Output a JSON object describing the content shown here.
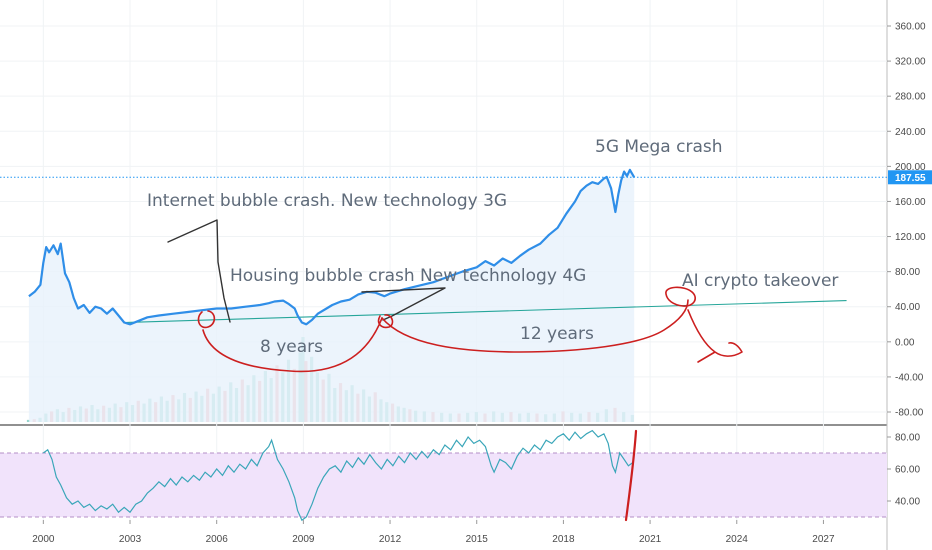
{
  "chart_data": [
    {
      "type": "line",
      "panel": "price",
      "y_ticks": [
        "360.00",
        "320.00",
        "280.00",
        "240.00",
        "200.00",
        "160.00",
        "120.00",
        "80.00",
        "40.00",
        "0.00",
        "-40.00",
        "-80.00"
      ],
      "ylim": [
        -80,
        380
      ],
      "xlim": [
        1998.5,
        2029.2
      ],
      "x_ticks": [
        "2000",
        "2003",
        "2006",
        "2009",
        "2012",
        "2015",
        "2018",
        "2021",
        "2024",
        "2027"
      ],
      "last_price": "187.55",
      "colors": {
        "price_line": "#2f8ee8",
        "area_fill": "#e7f1fb",
        "trend_line": "#26a69a",
        "last_price_label": "#2196f3",
        "annotation_ink": "#cc1f1f",
        "pen_ink": "#333333"
      },
      "series": [
        {
          "values": [
            [
              1999.5,
              52
            ],
            [
              1999.7,
              57
            ],
            [
              1999.9,
              65
            ],
            [
              2000.0,
              90
            ],
            [
              2000.1,
              108
            ],
            [
              2000.2,
              102
            ],
            [
              2000.35,
              110
            ],
            [
              2000.5,
              100
            ],
            [
              2000.6,
              112
            ],
            [
              2000.75,
              78
            ],
            [
              2000.9,
              68
            ],
            [
              2001.05,
              50
            ],
            [
              2001.2,
              38
            ],
            [
              2001.4,
              42
            ],
            [
              2001.6,
              33
            ],
            [
              2001.8,
              40
            ],
            [
              2002.0,
              38
            ],
            [
              2002.2,
              32
            ],
            [
              2002.4,
              38
            ],
            [
              2002.6,
              30
            ],
            [
              2002.8,
              22
            ],
            [
              2003.0,
              20
            ],
            [
              2003.3,
              24
            ],
            [
              2003.6,
              28
            ],
            [
              2004.0,
              30
            ],
            [
              2004.5,
              32
            ],
            [
              2005.0,
              34
            ],
            [
              2005.5,
              36
            ],
            [
              2006.0,
              38
            ],
            [
              2006.5,
              38
            ],
            [
              2007.0,
              40
            ],
            [
              2007.5,
              42
            ],
            [
              2007.8,
              44
            ],
            [
              2008.0,
              46
            ],
            [
              2008.3,
              47
            ],
            [
              2008.5,
              43
            ],
            [
              2008.7,
              38
            ],
            [
              2008.8,
              30
            ],
            [
              2008.95,
              22
            ],
            [
              2009.1,
              20
            ],
            [
              2009.3,
              25
            ],
            [
              2009.5,
              32
            ],
            [
              2009.8,
              38
            ],
            [
              2010.0,
              42
            ],
            [
              2010.3,
              46
            ],
            [
              2010.6,
              48
            ],
            [
              2010.9,
              54
            ],
            [
              2011.2,
              57
            ],
            [
              2011.5,
              56
            ],
            [
              2011.8,
              52
            ],
            [
              2012.0,
              55
            ],
            [
              2012.5,
              60
            ],
            [
              2013.0,
              64
            ],
            [
              2013.5,
              68
            ],
            [
              2014.0,
              74
            ],
            [
              2014.5,
              80
            ],
            [
              2015.0,
              85
            ],
            [
              2015.3,
              92
            ],
            [
              2015.6,
              87
            ],
            [
              2015.9,
              95
            ],
            [
              2016.2,
              90
            ],
            [
              2016.5,
              98
            ],
            [
              2016.8,
              105
            ],
            [
              2017.2,
              112
            ],
            [
              2017.5,
              122
            ],
            [
              2017.8,
              130
            ],
            [
              2018.1,
              146
            ],
            [
              2018.4,
              160
            ],
            [
              2018.6,
              172
            ],
            [
              2018.8,
              178
            ],
            [
              2019.0,
              182
            ],
            [
              2019.2,
              180
            ],
            [
              2019.4,
              186
            ],
            [
              2019.5,
              188
            ],
            [
              2019.65,
              175
            ],
            [
              2019.8,
              148
            ],
            [
              2019.9,
              168
            ],
            [
              2020.0,
              184
            ],
            [
              2020.1,
              194
            ],
            [
              2020.2,
              189
            ],
            [
              2020.3,
              196
            ],
            [
              2020.45,
              187.55
            ]
          ]
        }
      ],
      "volume": [
        [
          1999.5,
          3
        ],
        [
          1999.7,
          4
        ],
        [
          1999.9,
          6
        ],
        [
          2000.1,
          12
        ],
        [
          2000.3,
          15
        ],
        [
          2000.5,
          18
        ],
        [
          2000.7,
          14
        ],
        [
          2000.9,
          20
        ],
        [
          2001.1,
          17
        ],
        [
          2001.3,
          22
        ],
        [
          2001.5,
          19
        ],
        [
          2001.7,
          24
        ],
        [
          2001.9,
          18
        ],
        [
          2002.1,
          23
        ],
        [
          2002.3,
          20
        ],
        [
          2002.5,
          26
        ],
        [
          2002.7,
          21
        ],
        [
          2002.9,
          28
        ],
        [
          2003.1,
          24
        ],
        [
          2003.3,
          30
        ],
        [
          2003.5,
          26
        ],
        [
          2003.7,
          33
        ],
        [
          2003.9,
          28
        ],
        [
          2004.1,
          36
        ],
        [
          2004.3,
          30
        ],
        [
          2004.5,
          38
        ],
        [
          2004.7,
          32
        ],
        [
          2004.9,
          41
        ],
        [
          2005.1,
          34
        ],
        [
          2005.3,
          43
        ],
        [
          2005.5,
          37
        ],
        [
          2005.7,
          47
        ],
        [
          2005.9,
          40
        ],
        [
          2006.1,
          50
        ],
        [
          2006.3,
          44
        ],
        [
          2006.5,
          56
        ],
        [
          2006.7,
          48
        ],
        [
          2006.9,
          60
        ],
        [
          2007.1,
          52
        ],
        [
          2007.3,
          66
        ],
        [
          2007.5,
          58
        ],
        [
          2007.7,
          72
        ],
        [
          2007.9,
          62
        ],
        [
          2008.1,
          80
        ],
        [
          2008.3,
          70
        ],
        [
          2008.5,
          88
        ],
        [
          2008.7,
          75
        ],
        [
          2008.9,
          98
        ],
        [
          2009.0,
          120
        ],
        [
          2009.1,
          86
        ],
        [
          2009.3,
          92
        ],
        [
          2009.5,
          70
        ],
        [
          2009.7,
          60
        ],
        [
          2009.9,
          68
        ],
        [
          2010.1,
          48
        ],
        [
          2010.3,
          55
        ],
        [
          2010.5,
          45
        ],
        [
          2010.7,
          52
        ],
        [
          2010.9,
          40
        ],
        [
          2011.1,
          46
        ],
        [
          2011.3,
          36
        ],
        [
          2011.5,
          42
        ],
        [
          2011.7,
          32
        ],
        [
          2011.9,
          28
        ],
        [
          2012.1,
          26
        ],
        [
          2012.3,
          22
        ],
        [
          2012.5,
          20
        ],
        [
          2012.7,
          18
        ],
        [
          2012.9,
          16
        ],
        [
          2013.2,
          15
        ],
        [
          2013.5,
          14
        ],
        [
          2013.8,
          13
        ],
        [
          2014.1,
          12
        ],
        [
          2014.4,
          12
        ],
        [
          2014.7,
          13
        ],
        [
          2015.0,
          14
        ],
        [
          2015.3,
          12
        ],
        [
          2015.6,
          15
        ],
        [
          2015.9,
          13
        ],
        [
          2016.2,
          14
        ],
        [
          2016.5,
          12
        ],
        [
          2016.8,
          13
        ],
        [
          2017.1,
          12
        ],
        [
          2017.4,
          11
        ],
        [
          2017.7,
          12
        ],
        [
          2018.0,
          15
        ],
        [
          2018.3,
          13
        ],
        [
          2018.6,
          12
        ],
        [
          2018.9,
          14
        ],
        [
          2019.2,
          13
        ],
        [
          2019.5,
          18
        ],
        [
          2019.8,
          20
        ],
        [
          2020.1,
          14
        ],
        [
          2020.4,
          10
        ]
      ],
      "annotations": [
        {
          "text": "Internet bubble crash. New technology 3G"
        },
        {
          "text": "Housing bubble crash New technology 4G"
        },
        {
          "text": "5G Mega crash"
        },
        {
          "text": "AI crypto takeover"
        },
        {
          "text": "8 years"
        },
        {
          "text": "12 years"
        }
      ]
    },
    {
      "type": "line",
      "panel": "rsi",
      "y_ticks": [
        "80.00",
        "60.00",
        "40.00"
      ],
      "ylim": [
        25,
        86
      ],
      "band": [
        30,
        70
      ],
      "colors": {
        "line": "#3aa6b9",
        "band": "#f1e3fb",
        "band_border": "#b48fc7"
      },
      "series": [
        {
          "values": [
            [
              2000.0,
              70
            ],
            [
              2000.15,
              72
            ],
            [
              2000.3,
              66
            ],
            [
              2000.45,
              55
            ],
            [
              2000.6,
              50
            ],
            [
              2000.8,
              42
            ],
            [
              2001.0,
              38
            ],
            [
              2001.2,
              40
            ],
            [
              2001.4,
              36
            ],
            [
              2001.6,
              38
            ],
            [
              2001.8,
              34
            ],
            [
              2002.0,
              37
            ],
            [
              2002.2,
              35
            ],
            [
              2002.4,
              38
            ],
            [
              2002.6,
              33
            ],
            [
              2002.8,
              36
            ],
            [
              2003.0,
              33
            ],
            [
              2003.2,
              38
            ],
            [
              2003.4,
              40
            ],
            [
              2003.6,
              45
            ],
            [
              2003.8,
              48
            ],
            [
              2004.0,
              52
            ],
            [
              2004.2,
              49
            ],
            [
              2004.4,
              54
            ],
            [
              2004.6,
              50
            ],
            [
              2004.8,
              55
            ],
            [
              2005.0,
              52
            ],
            [
              2005.2,
              56
            ],
            [
              2005.4,
              53
            ],
            [
              2005.6,
              58
            ],
            [
              2005.8,
              55
            ],
            [
              2006.0,
              60
            ],
            [
              2006.2,
              56
            ],
            [
              2006.4,
              62
            ],
            [
              2006.6,
              58
            ],
            [
              2006.8,
              63
            ],
            [
              2007.0,
              60
            ],
            [
              2007.2,
              66
            ],
            [
              2007.4,
              62
            ],
            [
              2007.6,
              70
            ],
            [
              2007.8,
              74
            ],
            [
              2007.9,
              78
            ],
            [
              2008.1,
              66
            ],
            [
              2008.3,
              60
            ],
            [
              2008.5,
              52
            ],
            [
              2008.7,
              42
            ],
            [
              2008.8,
              34
            ],
            [
              2008.95,
              28
            ],
            [
              2009.1,
              30
            ],
            [
              2009.3,
              38
            ],
            [
              2009.5,
              48
            ],
            [
              2009.7,
              55
            ],
            [
              2009.9,
              60
            ],
            [
              2010.1,
              62
            ],
            [
              2010.3,
              58
            ],
            [
              2010.5,
              65
            ],
            [
              2010.7,
              61
            ],
            [
              2010.9,
              67
            ],
            [
              2011.1,
              63
            ],
            [
              2011.3,
              69
            ],
            [
              2011.5,
              64
            ],
            [
              2011.7,
              60
            ],
            [
              2011.9,
              66
            ],
            [
              2012.1,
              62
            ],
            [
              2012.3,
              68
            ],
            [
              2012.5,
              64
            ],
            [
              2012.7,
              70
            ],
            [
              2012.9,
              66
            ],
            [
              2013.1,
              71
            ],
            [
              2013.3,
              67
            ],
            [
              2013.5,
              72
            ],
            [
              2013.7,
              69
            ],
            [
              2013.9,
              75
            ],
            [
              2014.1,
              72
            ],
            [
              2014.3,
              78
            ],
            [
              2014.5,
              74
            ],
            [
              2014.7,
              80
            ],
            [
              2014.9,
              76
            ],
            [
              2015.1,
              78
            ],
            [
              2015.3,
              74
            ],
            [
              2015.5,
              62
            ],
            [
              2015.6,
              58
            ],
            [
              2015.8,
              66
            ],
            [
              2016.0,
              64
            ],
            [
              2016.2,
              60
            ],
            [
              2016.4,
              68
            ],
            [
              2016.6,
              73
            ],
            [
              2016.8,
              70
            ],
            [
              2017.0,
              75
            ],
            [
              2017.2,
              72
            ],
            [
              2017.4,
              78
            ],
            [
              2017.6,
              76
            ],
            [
              2017.8,
              80
            ],
            [
              2018.0,
              82
            ],
            [
              2018.2,
              78
            ],
            [
              2018.4,
              83
            ],
            [
              2018.6,
              79
            ],
            [
              2018.8,
              82
            ],
            [
              2019.0,
              84
            ],
            [
              2019.2,
              80
            ],
            [
              2019.4,
              82
            ],
            [
              2019.55,
              76
            ],
            [
              2019.7,
              62
            ],
            [
              2019.8,
              58
            ],
            [
              2019.95,
              70
            ],
            [
              2020.1,
              66
            ],
            [
              2020.25,
              62
            ],
            [
              2020.4,
              64
            ]
          ]
        }
      ]
    }
  ]
}
